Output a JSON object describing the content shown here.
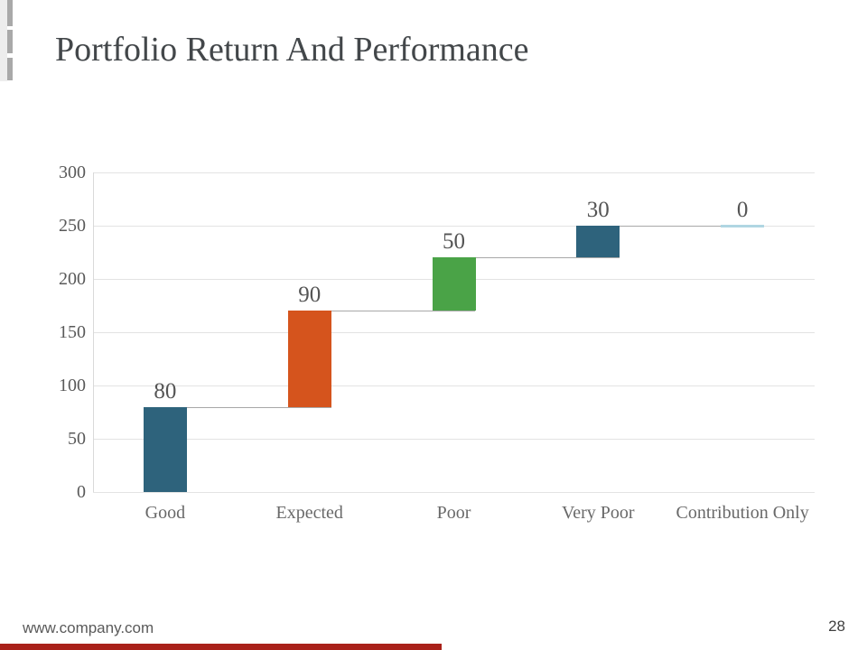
{
  "slide": {
    "title": "Portfolio Return And Performance",
    "footer": {
      "website": "www.company.com",
      "page_number": "28"
    }
  },
  "chart_data": {
    "type": "bar",
    "subtype": "waterfall",
    "title": "",
    "xlabel": "",
    "ylabel": "",
    "legend": "none",
    "grid": true,
    "categories": [
      "Good",
      "Expected",
      "Poor",
      "Very Poor",
      "Contribution Only"
    ],
    "values": [
      80,
      90,
      50,
      30,
      0
    ],
    "cumulative_levels": [
      80,
      170,
      220,
      250,
      250
    ],
    "data_labels": [
      "80",
      "90",
      "50",
      "30",
      "0"
    ],
    "y_ticks": [
      0,
      50,
      100,
      150,
      200,
      250,
      300
    ],
    "ylim": [
      0,
      300
    ],
    "bar_colors": [
      "#2e637c",
      "#d5541d",
      "#4aa347",
      "#2e637c",
      "#b0d6e2"
    ]
  },
  "colors": {
    "accent_bar": "#a92019",
    "left_strip": "#ededed",
    "left_segments": "#a9a9a9",
    "gridline": "#e3e3e3",
    "connector": "#a8a8a8",
    "title_text": "#43474a",
    "tick_text": "#595959",
    "value_label_text": "#545454",
    "category_text": "#696969"
  }
}
